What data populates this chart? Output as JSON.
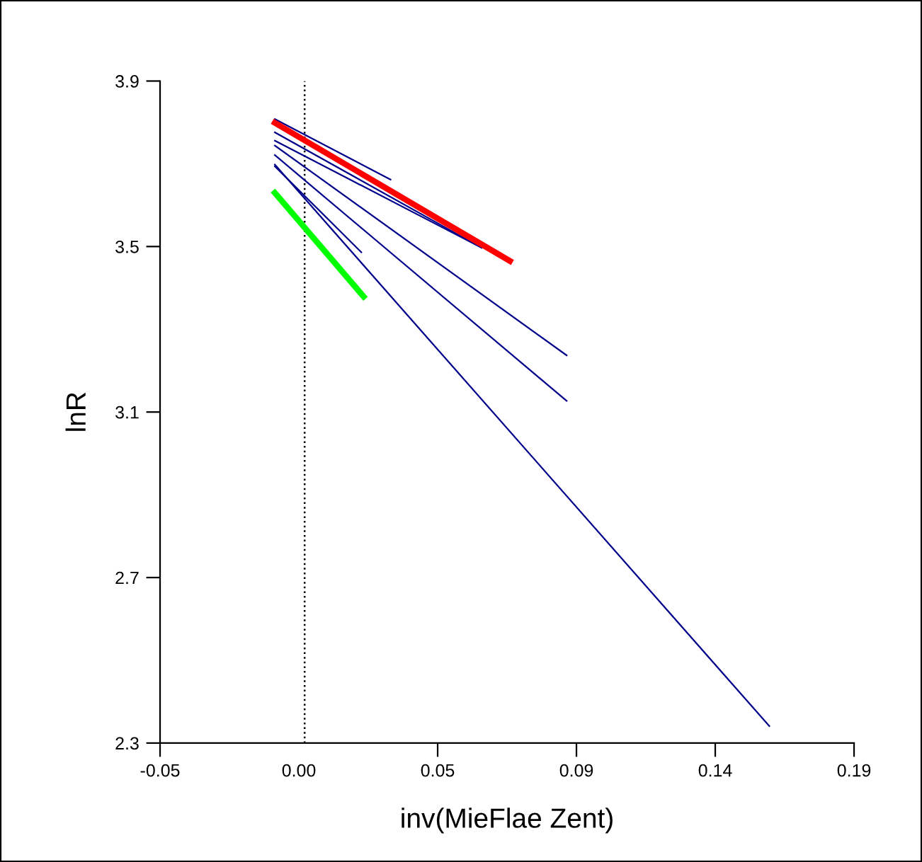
{
  "chart_data": {
    "type": "line",
    "xlabel": "inv(MieFlae Zent)",
    "ylabel": "lnR",
    "xlim": [
      -0.05,
      0.19
    ],
    "xticks": [
      -0.05,
      {
        "value": -0.002,
        "label": "0.00"
      },
      {
        "value": 0.046,
        "label": "0.05"
      },
      {
        "value": 0.094,
        "label": "0.09"
      },
      {
        "value": 0.142,
        "label": "0.14"
      },
      0.19
    ],
    "ylim": [
      2.3,
      3.9
    ],
    "yticks": [
      2.3,
      2.7,
      3.1,
      3.5,
      3.9
    ],
    "grid": false,
    "legend": false,
    "marker": "none",
    "line_style": "solid",
    "ref_lines": [
      {
        "axis": "x",
        "value": 0,
        "color": "#000000",
        "line_style": "dotted"
      }
    ],
    "series": [
      {
        "color": "#00008b",
        "x": [
          -0.0103,
          0.0297
        ],
        "values": [
          3.808,
          3.662
        ]
      },
      {
        "color": "#00008b",
        "x": [
          -0.0103,
          0.0612
        ],
        "values": [
          3.776,
          3.497
        ]
      },
      {
        "color": "#00008b",
        "x": [
          -0.0103,
          0.0612
        ],
        "values": [
          3.756,
          3.497
        ]
      },
      {
        "color": "#00008b",
        "x": [
          -0.0103,
          0.0906
        ],
        "values": [
          3.744,
          3.237
        ]
      },
      {
        "color": "#00008b",
        "x": [
          -0.0103,
          0.0906
        ],
        "values": [
          3.721,
          3.127
        ]
      },
      {
        "color": "#00008b",
        "x": [
          -0.0103,
          0.1607
        ],
        "values": [
          3.698,
          2.341
        ]
      },
      {
        "color": "#00008b",
        "x": [
          -0.0103,
          0.0196
        ],
        "values": [
          3.694,
          3.486
        ]
      },
      {
        "color": "#ff0000",
        "x": [
          -0.0103,
          0.071
        ],
        "values": [
          3.799,
          3.465
        ]
      },
      {
        "color": "#00ff00",
        "x": [
          -0.0103,
          0.0204
        ],
        "values": [
          3.63,
          3.379
        ]
      }
    ]
  }
}
